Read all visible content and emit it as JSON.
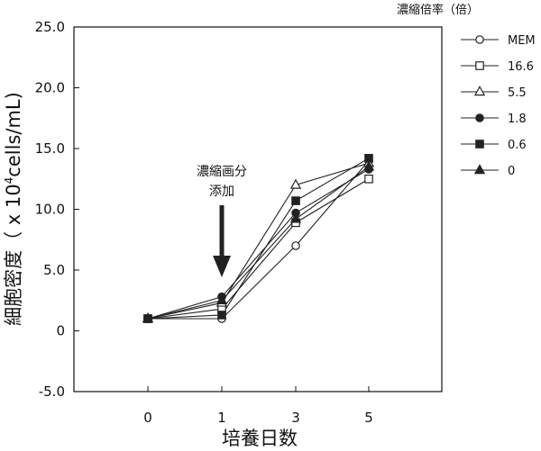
{
  "chart_data": {
    "type": "line",
    "ylabel_prefix": "細胞密度（ x 10",
    "ylabel_exp": "4",
    "ylabel_suffix": "cells/mL)",
    "xlabel": "培養日数",
    "x": [
      "0",
      "1",
      "3",
      "5"
    ],
    "ylim": [
      -5.0,
      25.0
    ],
    "yticks": [
      "-5.0",
      "0",
      "5.0",
      "10.0",
      "15.0",
      "20.0",
      "25.0"
    ],
    "yticks_values": [
      -5,
      0,
      5,
      10,
      15,
      20,
      25
    ],
    "legend_title": "濃縮倍率（倍）",
    "legend_position": "top-right",
    "annotation_line1": "濃縮画分",
    "annotation_line2": "添加",
    "annotation_x": "1",
    "series": [
      {
        "name": "MEM",
        "marker": "circle-open",
        "values": [
          1.0,
          1.0,
          7.0,
          14.0
        ]
      },
      {
        "name": "16.6",
        "marker": "square-open",
        "values": [
          1.0,
          1.8,
          8.9,
          12.5
        ]
      },
      {
        "name": "5.5",
        "marker": "triangle-open",
        "values": [
          1.0,
          2.3,
          12.0,
          13.8
        ]
      },
      {
        "name": "1.8",
        "marker": "circle-filled",
        "values": [
          1.0,
          2.8,
          9.7,
          13.3
        ]
      },
      {
        "name": "0.6",
        "marker": "square-filled",
        "values": [
          1.0,
          1.3,
          10.7,
          14.2
        ]
      },
      {
        "name": "0",
        "marker": "triangle-filled",
        "values": [
          1.0,
          2.5,
          9.2,
          13.5
        ]
      }
    ]
  }
}
